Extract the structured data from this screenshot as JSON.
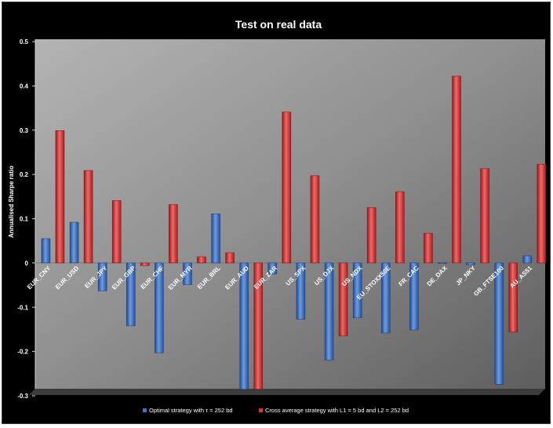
{
  "chart_data": {
    "type": "bar",
    "title": "Test on real data",
    "xlabel": "",
    "ylabel": "Annualised Sharpe ratio",
    "ylim": [
      -0.3,
      0.5
    ],
    "yticks": [
      "-0.3",
      "-0.2",
      "-0.1",
      "0",
      "0.1",
      "0.2",
      "0.3",
      "0.4",
      "0.5"
    ],
    "grid": false,
    "legend_position": "bottom",
    "categories": [
      "EUR_CNY",
      "EUR_USD",
      "EUR_JPY",
      "EUR_GBP",
      "EUR_CHF",
      "EUR_MYR",
      "EUR_BRL",
      "EUR_AUD",
      "EUR_ZAR",
      "US_SPX",
      "US_DJX",
      "US_NDX",
      "EU_STOXX50E",
      "FR_CAC",
      "DE_DAX",
      "JP_NKY",
      "GB_FTSE100",
      "AU_AS51"
    ],
    "series": [
      {
        "name": "Optimal strategy with τ = 252 bd",
        "color": "#3f74c8",
        "values": [
          0.055,
          0.092,
          -0.063,
          -0.142,
          -0.203,
          -0.049,
          0.111,
          -0.285,
          -0.025,
          -0.127,
          -0.219,
          -0.124,
          -0.158,
          -0.151,
          0.001,
          -0.004,
          -0.274,
          0.016
        ]
      },
      {
        "name": "Cross average strategy with L1 = 5 bd and L2 = 252 bd",
        "color": "#d83434",
        "values": [
          0.299,
          0.209,
          0.141,
          -0.006,
          0.132,
          0.014,
          0.023,
          -0.285,
          0.341,
          0.197,
          -0.165,
          0.125,
          0.161,
          0.067,
          0.422,
          0.213,
          -0.156,
          0.223
        ]
      }
    ]
  }
}
